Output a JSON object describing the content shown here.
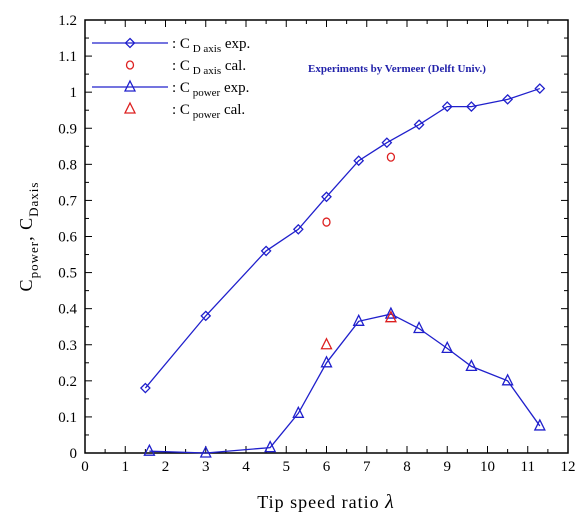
{
  "chart_data": {
    "type": "line",
    "xlabel": "Tip speed ratio",
    "xlabel_symbol": "λ",
    "ylabel": {
      "prefix": "C",
      "sub1": "power",
      "sep": ", C",
      "sub2": "Daxis"
    },
    "xlim": [
      0,
      12
    ],
    "ylim": [
      0,
      1.2
    ],
    "x_ticks": [
      "0",
      "1",
      "2",
      "3",
      "4",
      "5",
      "6",
      "7",
      "8",
      "9",
      "10",
      "11",
      "12"
    ],
    "y_ticks": [
      "0",
      "0.1",
      "0.2",
      "0.3",
      "0.4",
      "0.5",
      "0.6",
      "0.7",
      "0.8",
      "0.9",
      "1",
      "1.1",
      "1.2"
    ],
    "grid": false,
    "legend_position": "top-left",
    "annotation": "Experiments by Vermeer (Delft Univ.)",
    "series": [
      {
        "legend_prefix": ": C",
        "legend_sub": "D axis",
        "legend_suffix": " exp.",
        "marker": "diamond",
        "color": "#2020cc",
        "line": true,
        "x": [
          1.5,
          3.0,
          4.5,
          5.3,
          6.0,
          6.8,
          7.5,
          8.3,
          9.0,
          9.6,
          10.5,
          11.3
        ],
        "y": [
          0.18,
          0.38,
          0.56,
          0.62,
          0.71,
          0.81,
          0.86,
          0.91,
          0.96,
          0.96,
          0.98,
          1.01
        ]
      },
      {
        "legend_prefix": ": C",
        "legend_sub": "D axis",
        "legend_suffix": " cal.",
        "marker": "circle",
        "color": "#dd2020",
        "line": false,
        "x": [
          6.0,
          7.6
        ],
        "y": [
          0.64,
          0.82
        ]
      },
      {
        "legend_prefix": ": C",
        "legend_sub": "power",
        "legend_suffix": " exp.",
        "marker": "triangle",
        "color": "#2020cc",
        "line": true,
        "x": [
          1.6,
          3.0,
          4.6,
          5.3,
          6.0,
          6.8,
          7.6,
          8.3,
          9.0,
          9.6,
          10.5,
          11.3
        ],
        "y": [
          0.005,
          0.0,
          0.015,
          0.11,
          0.25,
          0.365,
          0.385,
          0.345,
          0.29,
          0.24,
          0.2,
          0.075
        ]
      },
      {
        "legend_prefix": ": C",
        "legend_sub": "power",
        "legend_suffix": " cal.",
        "marker": "triangle",
        "color": "#dd2020",
        "line": false,
        "x": [
          6.0,
          7.6
        ],
        "y": [
          0.3,
          0.375
        ]
      }
    ]
  }
}
